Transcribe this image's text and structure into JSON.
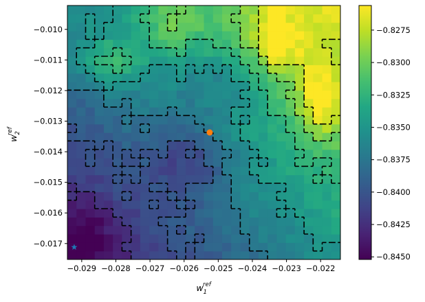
{
  "chart_data": {
    "type": "heatmap",
    "title": "",
    "xlabel": {
      "base": "w",
      "sub": "1",
      "sup": "ref"
    },
    "ylabel": {
      "base": "w",
      "sub": "2",
      "sup": "ref"
    },
    "xlim": [
      -0.02942,
      -0.02142
    ],
    "ylim": [
      -0.01752,
      -0.00922
    ],
    "x_ticks": [
      -0.029,
      -0.028,
      -0.027,
      -0.026,
      -0.025,
      -0.024,
      -0.023,
      -0.022
    ],
    "x_tick_labels": [
      "−0.029",
      "−0.028",
      "−0.027",
      "−0.026",
      "−0.025",
      "−0.024",
      "−0.023",
      "−0.022"
    ],
    "y_ticks": [
      -0.01,
      -0.011,
      -0.012,
      -0.013,
      -0.014,
      -0.015,
      -0.016,
      -0.017
    ],
    "y_tick_labels": [
      "−0.010",
      "−0.011",
      "−0.012",
      "−0.013",
      "−0.014",
      "−0.015",
      "−0.016",
      "−0.017"
    ],
    "colorbar": {
      "colormap": "viridis",
      "vmin": -0.8452,
      "vmax": -0.8256,
      "ticks": [
        -0.8275,
        -0.83,
        -0.8325,
        -0.835,
        -0.8375,
        -0.84,
        -0.8425,
        -0.845
      ],
      "tick_labels": [
        "−0.8275",
        "−0.8300",
        "−0.8325",
        "−0.8350",
        "−0.8375",
        "−0.8400",
        "−0.8425",
        "−0.8450"
      ]
    },
    "grid_size": [
      30,
      30
    ],
    "contour_levels": [
      -0.8425,
      -0.84,
      -0.8375,
      -0.835,
      -0.8325,
      -0.83,
      -0.8275
    ],
    "markers": [
      {
        "name": "orange-dot",
        "x": -0.02525,
        "y": -0.01337,
        "color": "#ff7f0e",
        "shape": "circle"
      },
      {
        "name": "blue-star",
        "x": -0.02922,
        "y": -0.01712,
        "color": "#1f77b4",
        "shape": "star"
      }
    ],
    "grid": false,
    "legend": "none"
  }
}
